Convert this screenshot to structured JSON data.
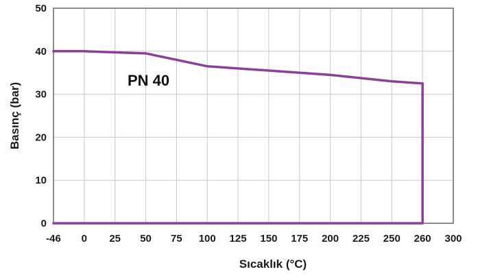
{
  "chart_data": {
    "type": "line",
    "title": "",
    "xlabel": "Sıcaklık (°C)",
    "ylabel": "Basınç (bar)",
    "x_categories": [
      "-46",
      "0",
      "25",
      "50",
      "75",
      "100",
      "125",
      "150",
      "175",
      "200",
      "225",
      "250",
      "260",
      "300"
    ],
    "y_ticks": [
      "0",
      "10",
      "20",
      "30",
      "40",
      "50"
    ],
    "ylim": [
      0,
      50
    ],
    "grid": true,
    "line_color": "#8b3f9b",
    "series": [
      {
        "annotation": "PN 40",
        "points": [
          {
            "x": "-46",
            "y": 40
          },
          {
            "x": "0",
            "y": 40
          },
          {
            "x": "50",
            "y": 39.5
          },
          {
            "x": "100",
            "y": 36.5
          },
          {
            "x": "200",
            "y": 34.5
          },
          {
            "x": "250",
            "y": 33
          },
          {
            "x": "260",
            "y": 32.5
          },
          {
            "x": "260",
            "y": 0
          },
          {
            "x": "-46",
            "y": 0
          }
        ]
      }
    ]
  }
}
